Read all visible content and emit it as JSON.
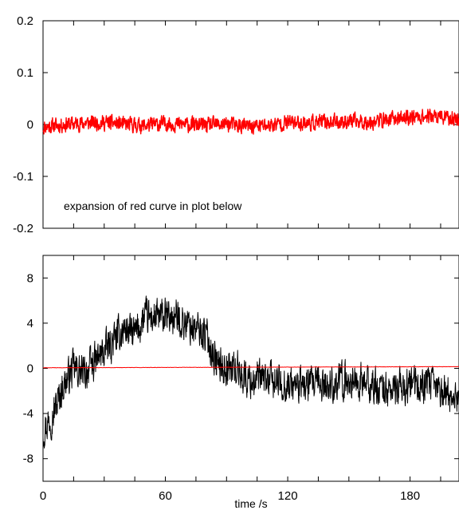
{
  "chart_data": [
    {
      "type": "line",
      "title": "",
      "xlabel": "",
      "ylabel": "",
      "xlim": [
        0,
        204
      ],
      "ylim": [
        -0.2,
        0.2
      ],
      "yticks": [
        {
          "value": 0.2,
          "label": "0.2"
        },
        {
          "value": 0.1,
          "label": "0.1"
        },
        {
          "value": 0,
          "label": "0"
        },
        {
          "value": -0.1,
          "label": "-0.1"
        },
        {
          "value": -0.2,
          "label": "-0.2"
        }
      ],
      "annotation": "expansion of red curve in plot below",
      "grid": false,
      "series": [
        {
          "color": "#ff0000",
          "x": [
            0,
            10,
            20,
            30,
            40,
            50,
            60,
            70,
            80,
            90,
            100,
            110,
            120,
            130,
            140,
            150,
            160,
            170,
            180,
            190,
            200,
            204
          ],
          "y": [
            -0.005,
            0.0,
            0.003,
            0.004,
            0.0,
            -0.002,
            0.002,
            0.0,
            -0.002,
            0.001,
            -0.004,
            -0.002,
            0.004,
            0.003,
            0.005,
            0.006,
            0.005,
            0.01,
            0.015,
            0.016,
            0.012,
            0.01
          ],
          "noise_amplitude": 0.02
        }
      ]
    },
    {
      "type": "line",
      "title": "",
      "xlabel": "time /s",
      "ylabel": "",
      "xlim": [
        0,
        204
      ],
      "ylim": [
        -10,
        10
      ],
      "xticks": [
        {
          "value": 0,
          "label": "0"
        },
        {
          "value": 60,
          "label": "60"
        },
        {
          "value": 120,
          "label": "120"
        },
        {
          "value": 180,
          "label": "180"
        }
      ],
      "yticks": [
        {
          "value": 8,
          "label": "8"
        },
        {
          "value": 4,
          "label": "4"
        },
        {
          "value": 0,
          "label": "0"
        },
        {
          "value": -4,
          "label": "-4"
        },
        {
          "value": -8,
          "label": "-8"
        }
      ],
      "grid": false,
      "series": [
        {
          "color": "#000000",
          "x": [
            0,
            5,
            10,
            15,
            20,
            25,
            30,
            35,
            40,
            45,
            50,
            55,
            60,
            65,
            70,
            75,
            80,
            85,
            90,
            95,
            100,
            110,
            120,
            130,
            140,
            150,
            160,
            170,
            180,
            190,
            200,
            204
          ],
          "y": [
            -5.5,
            -4.0,
            -1.5,
            0.0,
            -0.5,
            0.5,
            1.5,
            2.5,
            3.5,
            3.0,
            4.5,
            4.5,
            4.5,
            4.5,
            4.0,
            3.5,
            3.0,
            0.5,
            0.0,
            0.0,
            -1.0,
            -1.0,
            -1.5,
            -1.5,
            -1.5,
            -1.0,
            -1.5,
            -2.0,
            -1.5,
            -1.5,
            -2.5,
            -2.5
          ],
          "noise_amplitude": 2.2
        },
        {
          "color": "#ff0000",
          "x": [
            0,
            204
          ],
          "y": [
            0.05,
            0.15
          ],
          "noise_amplitude": 0.02
        }
      ]
    }
  ]
}
